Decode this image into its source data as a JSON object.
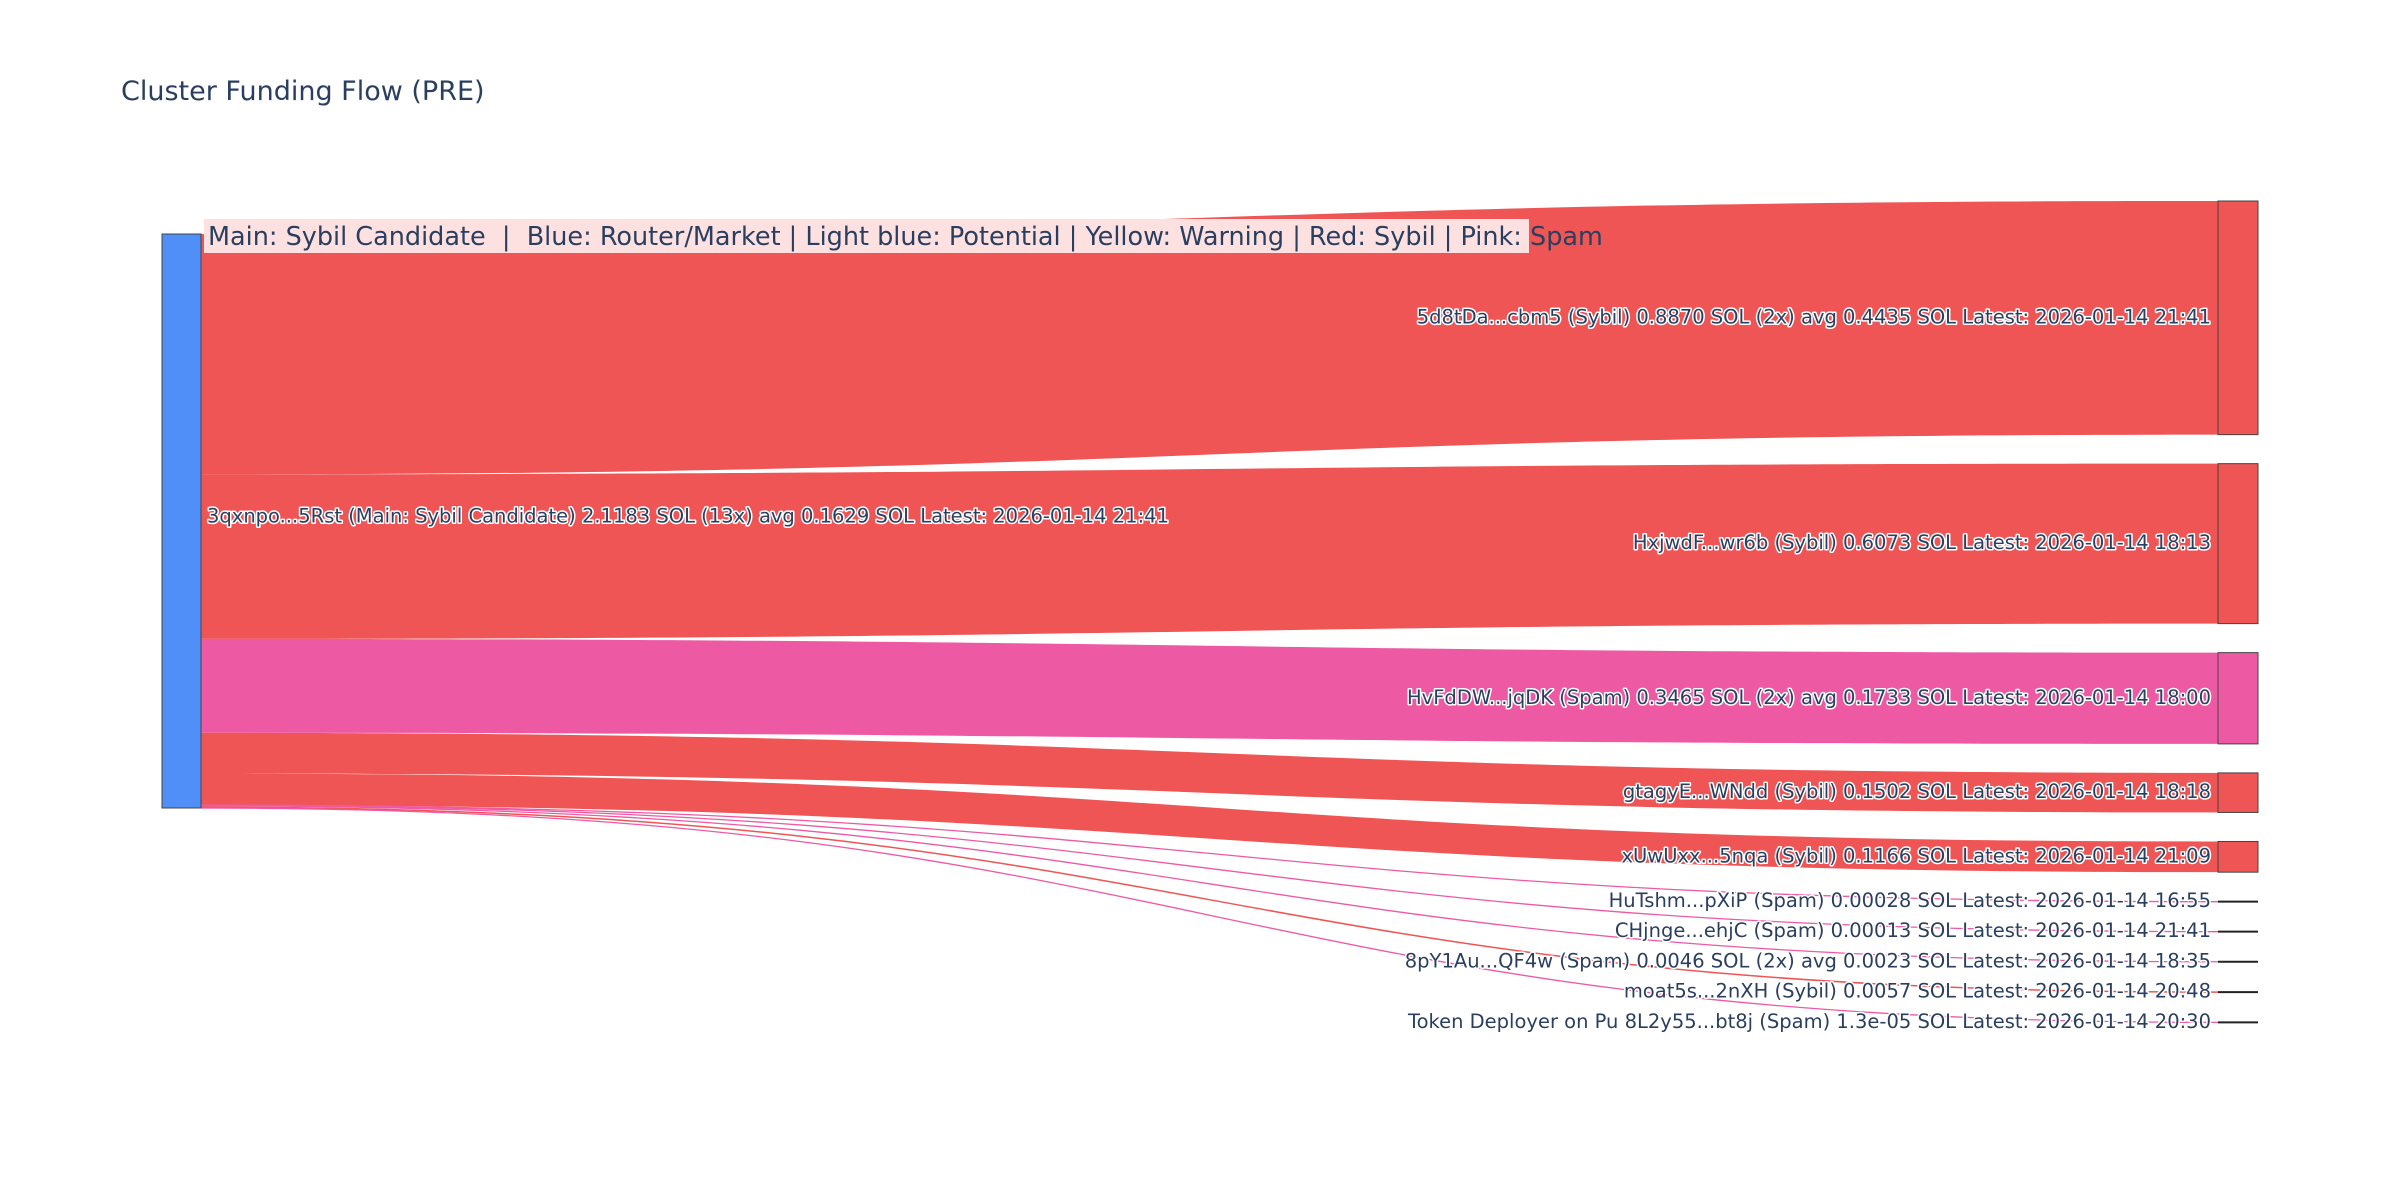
{
  "chart_data": {
    "type": "sankey",
    "title": "Cluster Funding Flow (PRE)",
    "legend_text": "Main: Sybil Candidate  |  Blue: Router/Market | Light blue: Potential | Yellow: Warning | Red: Sybil | Pink: Spam",
    "colors": {
      "source": "#4f8ff7",
      "sybil": "#ef5555",
      "spam": "#ee59a4",
      "legend_bg": "#fde0e0"
    },
    "source": {
      "label": "3qxnpo...5Rst (Main: Sybil Candidate) 2.1183 SOL (13x) avg 0.1629 SOL Latest: 2026-01-14 21:41",
      "value": 2.1183,
      "category": "source"
    },
    "targets": [
      {
        "label": "5d8tDa...cbm5 (Sybil) 0.8870 SOL (2x) avg 0.4435 SOL Latest: 2026-01-14 21:41",
        "value": 0.887,
        "category": "sybil"
      },
      {
        "label": "HxjwdF...wr6b (Sybil) 0.6073 SOL Latest: 2026-01-14 18:13",
        "value": 0.6073,
        "category": "sybil"
      },
      {
        "label": "HvFdDW...jqDK (Spam) 0.3465 SOL (2x) avg 0.1733 SOL Latest: 2026-01-14 18:00",
        "value": 0.3465,
        "category": "spam"
      },
      {
        "label": "gtagyE...WNdd (Sybil) 0.1502 SOL Latest: 2026-01-14 18:18",
        "value": 0.1502,
        "category": "sybil"
      },
      {
        "label": "xUwUxx...5nqa (Sybil) 0.1166 SOL Latest: 2026-01-14 21:09",
        "value": 0.1166,
        "category": "sybil"
      },
      {
        "label": "HuTshm...pXiP (Spam) 0.00028 SOL Latest: 2026-01-14 16:55",
        "value": 0.00028,
        "category": "spam"
      },
      {
        "label": "CHjnge...ehjC (Spam) 0.00013 SOL Latest: 2026-01-14 21:41",
        "value": 0.00013,
        "category": "spam"
      },
      {
        "label": "8pY1Au...QF4w (Spam) 0.0046 SOL (2x) avg 0.0023 SOL Latest: 2026-01-14 18:35",
        "value": 0.0046,
        "category": "spam"
      },
      {
        "label": "moat5s...2nXH (Sybil) 0.0057 SOL Latest: 2026-01-14 20:48",
        "value": 0.0057,
        "category": "sybil"
      },
      {
        "label": "Token Deployer on Pu 8L2y55...bt8j (Spam) 1.3e-05 SOL Latest: 2026-01-14 20:30",
        "value": 1.3e-05,
        "category": "spam"
      }
    ]
  }
}
